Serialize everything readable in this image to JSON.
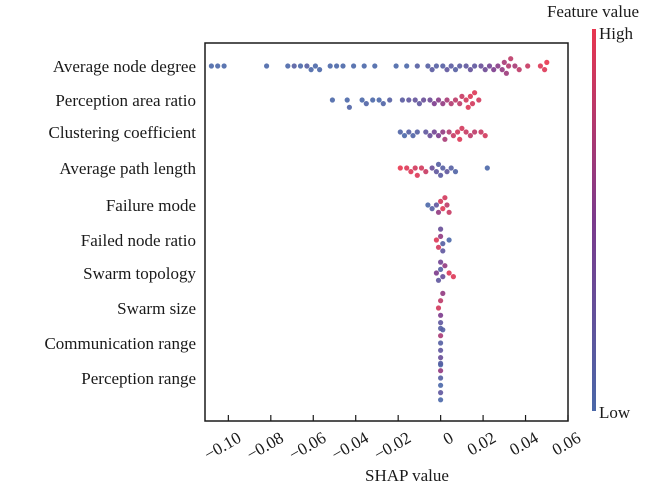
{
  "chart_data": {
    "type": "scatter",
    "subtype": "shap-beeswarm",
    "title": "",
    "xlabel": "SHAP value",
    "ylabel": "",
    "xlim": [
      -0.111,
      0.06
    ],
    "xticks": [
      -0.1,
      -0.08,
      -0.06,
      -0.04,
      -0.02,
      0,
      0.02,
      0.04,
      0.06
    ],
    "xtick_labels": [
      "−0.10",
      "−0.08",
      "−0.06",
      "−0.04",
      "−0.02",
      "0",
      "0.02",
      "0.04",
      "0.06"
    ],
    "grid": false,
    "colorbar": {
      "title": "Feature value",
      "high_label": "High",
      "low_label": "Low",
      "high_color": "#e8364f",
      "mid_color": "#7b3a8c",
      "low_color": "#4a67a8"
    },
    "features": [
      {
        "name": "Average node degree",
        "points": [
          [
            -0.108,
            0
          ],
          [
            -0.105,
            0
          ],
          [
            -0.102,
            0
          ],
          [
            -0.082,
            0
          ],
          [
            -0.072,
            0
          ],
          [
            -0.069,
            0.1
          ],
          [
            -0.066,
            0
          ],
          [
            -0.063,
            0.1
          ],
          [
            -0.061,
            0
          ],
          [
            -0.059,
            0
          ],
          [
            -0.057,
            0
          ],
          [
            -0.052,
            0
          ],
          [
            -0.049,
            0
          ],
          [
            -0.046,
            0
          ],
          [
            -0.041,
            0
          ],
          [
            -0.036,
            0
          ],
          [
            -0.031,
            0
          ],
          [
            -0.021,
            0
          ],
          [
            -0.016,
            0
          ],
          [
            -0.011,
            0.1
          ],
          [
            -0.006,
            0.1
          ],
          [
            -0.004,
            0.15
          ],
          [
            -0.002,
            0.1
          ],
          [
            0.001,
            0.1
          ],
          [
            0.003,
            0.2
          ],
          [
            0.005,
            0.15
          ],
          [
            0.007,
            0.1
          ],
          [
            0.009,
            0.15
          ],
          [
            0.012,
            0.2
          ],
          [
            0.014,
            0.25
          ],
          [
            0.016,
            0.2
          ],
          [
            0.019,
            0.3
          ],
          [
            0.021,
            0.35
          ],
          [
            0.023,
            0.4
          ],
          [
            0.025,
            0.5
          ],
          [
            0.027,
            0.55
          ],
          [
            0.029,
            0.6
          ],
          [
            0.03,
            0.7
          ],
          [
            0.031,
            0.65
          ],
          [
            0.032,
            0.75
          ],
          [
            0.033,
            0.8
          ],
          [
            0.035,
            0.7
          ],
          [
            0.037,
            0.8
          ],
          [
            0.041,
            0.85
          ],
          [
            0.047,
            0.95
          ],
          [
            0.049,
            0.95
          ],
          [
            0.05,
            1.0
          ]
        ]
      },
      {
        "name": "Perception area ratio",
        "points": [
          [
            -0.051,
            0
          ],
          [
            -0.044,
            0
          ],
          [
            -0.043,
            0.05
          ],
          [
            -0.037,
            0
          ],
          [
            -0.035,
            0.05
          ],
          [
            -0.032,
            0
          ],
          [
            -0.029,
            0
          ],
          [
            -0.027,
            0.05
          ],
          [
            -0.024,
            0.1
          ],
          [
            -0.018,
            0.15
          ],
          [
            -0.015,
            0.2
          ],
          [
            -0.012,
            0.25
          ],
          [
            -0.01,
            0.2
          ],
          [
            -0.008,
            0.3
          ],
          [
            -0.005,
            0.35
          ],
          [
            -0.003,
            0.5
          ],
          [
            -0.001,
            0.55
          ],
          [
            0.001,
            0.6
          ],
          [
            0.003,
            0.7
          ],
          [
            0.005,
            0.75
          ],
          [
            0.007,
            0.8
          ],
          [
            0.009,
            0.8
          ],
          [
            0.01,
            0.85
          ],
          [
            0.012,
            0.9
          ],
          [
            0.013,
            0.95
          ],
          [
            0.014,
            0.95
          ],
          [
            0.015,
            0.9
          ],
          [
            0.016,
            0.95
          ],
          [
            0.018,
            0.9
          ]
        ]
      },
      {
        "name": "Clustering coefficient",
        "points": [
          [
            -0.019,
            0.05
          ],
          [
            -0.017,
            0
          ],
          [
            -0.015,
            0.1
          ],
          [
            -0.013,
            0.05
          ],
          [
            -0.011,
            0.1
          ],
          [
            -0.007,
            0.2
          ],
          [
            -0.005,
            0.3
          ],
          [
            -0.003,
            0.4
          ],
          [
            -0.001,
            0.5
          ],
          [
            0.001,
            0.6
          ],
          [
            0.002,
            0.7
          ],
          [
            0.004,
            0.75
          ],
          [
            0.006,
            0.85
          ],
          [
            0.008,
            0.9
          ],
          [
            0.009,
            0.95
          ],
          [
            0.01,
            0.9
          ],
          [
            0.012,
            0.85
          ],
          [
            0.014,
            0.8
          ],
          [
            0.016,
            0.8
          ],
          [
            0.019,
            0.85
          ],
          [
            0.021,
            0.9
          ]
        ]
      },
      {
        "name": "Average path length",
        "points": [
          [
            -0.019,
            1.0
          ],
          [
            -0.016,
            0.95
          ],
          [
            -0.014,
            0.95
          ],
          [
            -0.012,
            0.9
          ],
          [
            -0.011,
            0.95
          ],
          [
            -0.009,
            0.9
          ],
          [
            -0.007,
            0.85
          ],
          [
            -0.004,
            0.3
          ],
          [
            -0.002,
            0.2
          ],
          [
            -0.001,
            0.1
          ],
          [
            0.0,
            0.15
          ],
          [
            0.001,
            0.1
          ],
          [
            0.003,
            0.2
          ],
          [
            0.005,
            0.1
          ],
          [
            0.007,
            0.05
          ],
          [
            0.022,
            0.0
          ]
        ]
      },
      {
        "name": "Failure mode",
        "points": [
          [
            -0.006,
            0.0
          ],
          [
            -0.004,
            0.1
          ],
          [
            -0.002,
            0.2
          ],
          [
            -0.001,
            0.6
          ],
          [
            0.0,
            0.9
          ],
          [
            0.001,
            0.95
          ],
          [
            0.002,
            0.9
          ],
          [
            0.003,
            0.8
          ],
          [
            0.004,
            0.85
          ]
        ]
      },
      {
        "name": "Failed node ratio",
        "points": [
          [
            -0.002,
            0.95
          ],
          [
            -0.001,
            0.9
          ],
          [
            0.0,
            0.6
          ],
          [
            0.0,
            0.3
          ],
          [
            0.001,
            0.1
          ],
          [
            0.001,
            0.2
          ],
          [
            0.004,
            0.0
          ]
        ]
      },
      {
        "name": "Swarm topology",
        "points": [
          [
            -0.002,
            0.5
          ],
          [
            -0.001,
            0.2
          ],
          [
            0.0,
            0.1
          ],
          [
            0.0,
            0.4
          ],
          [
            0.001,
            0.3
          ],
          [
            0.002,
            0.6
          ],
          [
            0.004,
            0.95
          ],
          [
            0.006,
            0.95
          ]
        ]
      },
      {
        "name": "Swarm size",
        "points": [
          [
            -0.001,
            0.9
          ],
          [
            0.0,
            0.5
          ],
          [
            0.0,
            0.8
          ],
          [
            0.0,
            0.2
          ],
          [
            0.001,
            0.6
          ],
          [
            0.001,
            0.1
          ]
        ]
      },
      {
        "name": "Communication range",
        "points": [
          [
            0.0,
            0.1
          ],
          [
            0.0,
            0.2
          ],
          [
            0.0,
            0.7
          ],
          [
            0.0,
            0.3
          ],
          [
            0.0,
            0.1
          ],
          [
            0.0,
            0.0
          ]
        ]
      },
      {
        "name": "Perception range",
        "points": [
          [
            0.0,
            0.1
          ],
          [
            0.0,
            0.0
          ],
          [
            0.0,
            0.6
          ],
          [
            0.0,
            0.2
          ],
          [
            0.0,
            0.1
          ],
          [
            0.0,
            0.0
          ]
        ]
      }
    ]
  }
}
